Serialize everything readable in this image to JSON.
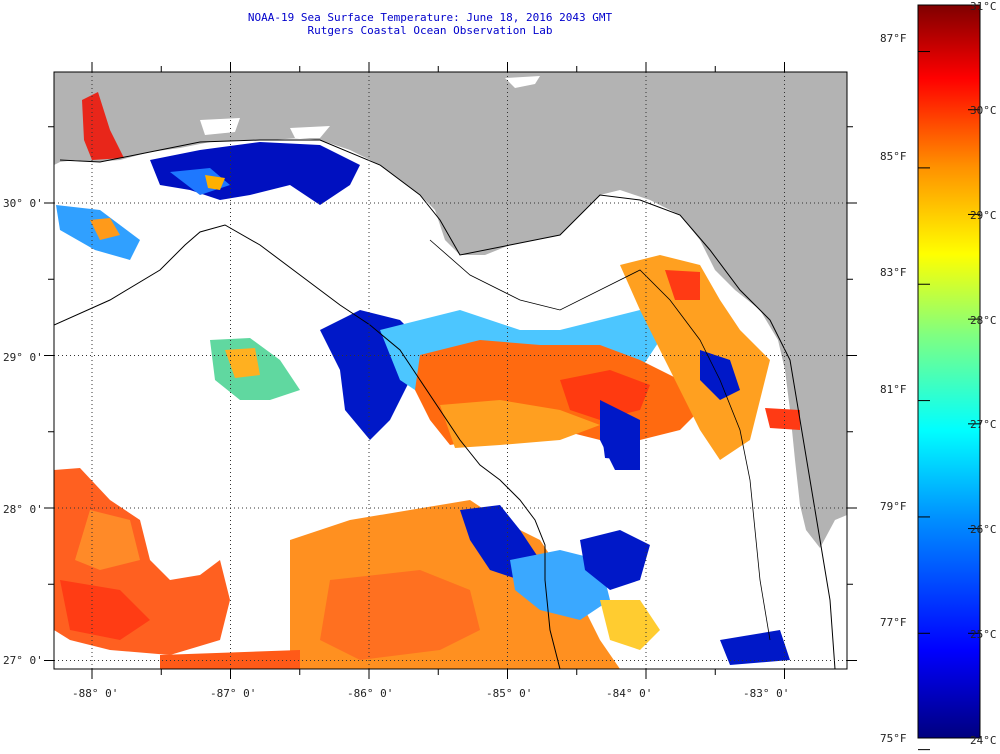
{
  "title": {
    "line1": "NOAA-19 Sea Surface Temperature:  June 18, 2016 2043 GMT",
    "line2": "Rutgers Coastal Ocean Observation Lab"
  },
  "map": {
    "lat_labels": [
      "30° 0'",
      "29° 0'",
      "28° 0'",
      "27° 0'"
    ],
    "lon_labels": [
      "-88° 0'",
      "-87° 0'",
      "-86° 0'",
      "-85° 0'",
      "-84° 0'",
      "-83° 0'"
    ],
    "lat_values": [
      30,
      29,
      28,
      27
    ],
    "lon_values": [
      -88,
      -87,
      -86,
      -85,
      -84,
      -83
    ],
    "colors": {
      "land": "#b3b3b3",
      "no_data": "#ffffff",
      "contour": "#000000"
    }
  },
  "colorbar": {
    "celsius": [
      "31°C",
      "30°C",
      "29°C",
      "28°C",
      "27°C",
      "26°C",
      "25°C",
      "24°C"
    ],
    "fahrenheit": [
      "87°F",
      "85°F",
      "83°F",
      "81°F",
      "79°F",
      "77°F",
      "75°F"
    ],
    "celsius_range": [
      24,
      31
    ],
    "stops": [
      "#00007f",
      "#0000ff",
      "#0080ff",
      "#00ffff",
      "#80ff80",
      "#ffff00",
      "#ff8000",
      "#ff0000",
      "#7f0000"
    ]
  }
}
